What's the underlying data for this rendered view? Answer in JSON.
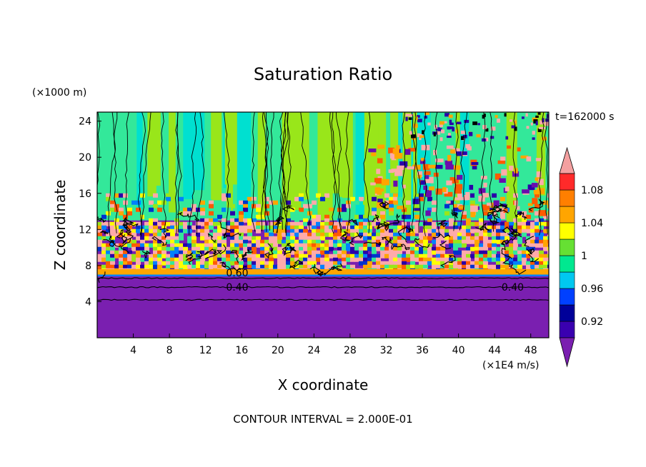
{
  "chart_data": {
    "type": "heatmap",
    "title": "Saturation Ratio",
    "xlabel": "X coordinate",
    "ylabel": "Z coordinate",
    "x_unit": "(×1E4 m/s)",
    "y_unit": "(×1000 m)",
    "time_label": "t=162000 s",
    "footer": "CONTOUR INTERVAL = 2.000E-01",
    "xlim": [
      0,
      50
    ],
    "ylim": [
      0,
      25
    ],
    "x_ticks": [
      4,
      8,
      12,
      16,
      20,
      24,
      28,
      32,
      36,
      40,
      44,
      48
    ],
    "y_ticks": [
      4,
      8,
      12,
      16,
      20,
      24
    ],
    "contour_labels": [
      {
        "text": "0.60",
        "x": 15.5,
        "z": 7.2
      },
      {
        "text": "0.40",
        "x": 15.5,
        "z": 5.6
      },
      {
        "text": "0.40",
        "x": 46.0,
        "z": 5.6
      }
    ],
    "colorbar": {
      "levels": [
        0.9,
        0.92,
        0.94,
        0.96,
        0.98,
        1.0,
        1.02,
        1.04,
        1.06,
        1.08,
        1.1
      ],
      "tick_labels": [
        "0.92",
        "0.96",
        "1",
        "1.04",
        "1.08"
      ],
      "tick_values": [
        0.92,
        0.96,
        1.0,
        1.04,
        1.08
      ],
      "colors": [
        "#6a0dad",
        "#2a00a8",
        "#0033cc",
        "#0080ff",
        "#00e0d0",
        "#33e89a",
        "#99e61a",
        "#ffff00",
        "#ffa500",
        "#ff5a00",
        "#ff2020",
        "#ffaaaa"
      ],
      "under_color": "#7a1fb0",
      "over_color": "#f4a0a0"
    },
    "layers": [
      {
        "z_from": 0,
        "z_to": 6.8,
        "value": "< 0.90",
        "note": "uniform"
      },
      {
        "z_from": 6.8,
        "z_to": 14,
        "value": "0.92-1.10",
        "note": "mixed turbulent"
      },
      {
        "z_from": 14,
        "z_to": 25,
        "value": "~1.00-1.02",
        "note": "green columns"
      }
    ]
  }
}
